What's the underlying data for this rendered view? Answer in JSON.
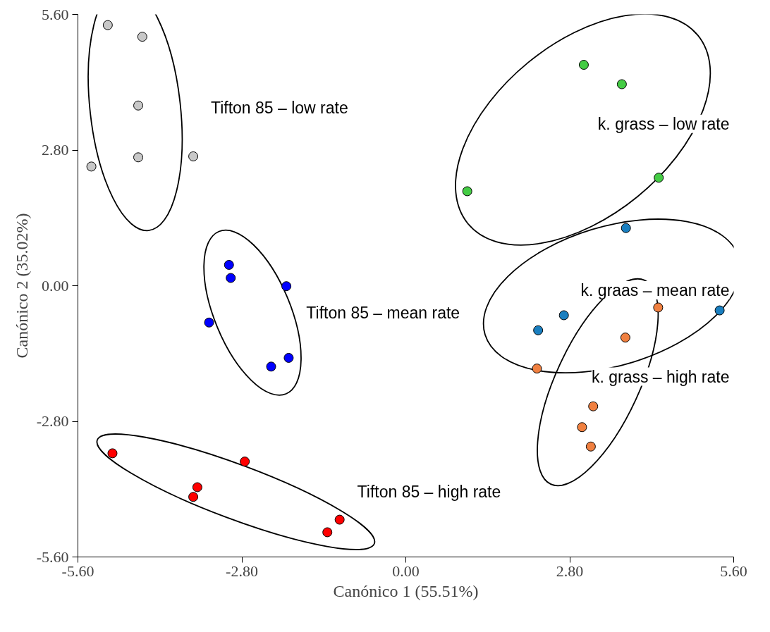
{
  "chart_data": {
    "type": "scatter",
    "xlabel": "Canónico 1 (55.51%)",
    "ylabel": "Canónico 2 (35.02%)",
    "xlim": [
      -5.6,
      5.6
    ],
    "ylim": [
      -5.6,
      5.6
    ],
    "xticks": [
      {
        "value": -5.6,
        "label": "-5.60"
      },
      {
        "value": -2.8,
        "label": "-2.80"
      },
      {
        "value": 0,
        "label": "0.00"
      },
      {
        "value": 2.8,
        "label": "2.80"
      },
      {
        "value": 5.6,
        "label": "5.60"
      }
    ],
    "yticks": [
      {
        "value": -5.6,
        "label": "-5.60"
      },
      {
        "value": -2.8,
        "label": "-2.80"
      },
      {
        "value": 0,
        "label": "0.00"
      },
      {
        "value": 2.8,
        "label": "2.80"
      },
      {
        "value": 5.6,
        "label": "5.60"
      }
    ],
    "grid": false,
    "marker": "circle",
    "series": [
      {
        "name": "Tifton 85 – low rate",
        "color": "#c8c8c8",
        "x": [
          -5.09,
          -4.5,
          -4.57,
          -4.57,
          -3.63,
          -5.37
        ],
        "values": [
          5.38,
          5.14,
          3.72,
          2.65,
          2.67,
          2.46
        ]
      },
      {
        "name": "Tifton 85 – mean rate",
        "color": "#0000ff",
        "x": [
          -3.02,
          -2.99,
          -2.04,
          -3.36,
          -2.0,
          -2.3
        ],
        "values": [
          0.43,
          0.16,
          -0.01,
          -0.76,
          -1.49,
          -1.67
        ]
      },
      {
        "name": "Tifton 85 – high rate",
        "color": "#ff0000",
        "x": [
          -5.01,
          -2.75,
          -3.56,
          -3.63,
          -1.13,
          -1.34
        ],
        "values": [
          -3.46,
          -3.63,
          -4.16,
          -4.36,
          -4.83,
          -5.09
        ]
      },
      {
        "name": "k. grass – low rate",
        "color": "#44cc44",
        "x": [
          3.04,
          3.69,
          1.05,
          4.32
        ],
        "values": [
          4.56,
          4.16,
          1.95,
          2.23
        ]
      },
      {
        "name": "k. graas – mean rate",
        "color": "#1a7fc0",
        "x": [
          3.76,
          2.7,
          2.26,
          5.36
        ],
        "values": [
          1.19,
          -0.61,
          -0.92,
          -0.51
        ]
      },
      {
        "name": "k. grass – high rate",
        "color": "#f08040",
        "x": [
          4.31,
          3.75,
          2.24,
          3.2,
          3.01,
          3.16
        ],
        "values": [
          -0.45,
          -1.07,
          -1.71,
          -2.49,
          -2.92,
          -3.32
        ]
      }
    ]
  }
}
